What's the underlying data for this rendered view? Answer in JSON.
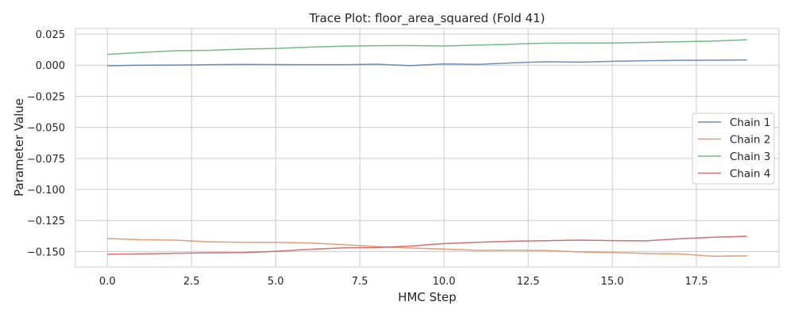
{
  "chart_data": {
    "type": "line",
    "title": "Trace Plot: floor_area_squared (Fold 41)",
    "xlabel": "HMC Step",
    "ylabel": "Parameter Value",
    "xlim": [
      -0.95,
      19.95
    ],
    "ylim": [
      -0.1625,
      0.0295
    ],
    "xticks": [
      0.0,
      2.5,
      5.0,
      7.5,
      10.0,
      12.5,
      15.0,
      17.5
    ],
    "xtick_labels": [
      "0.0",
      "2.5",
      "5.0",
      "7.5",
      "10.0",
      "12.5",
      "15.0",
      "17.5"
    ],
    "yticks": [
      0.025,
      0.0,
      -0.025,
      -0.05,
      -0.075,
      -0.1,
      -0.125,
      -0.15
    ],
    "ytick_labels": [
      "0.025",
      "0.000",
      "−0.025",
      "−0.050",
      "−0.075",
      "−0.100",
      "−0.125",
      "−0.150"
    ],
    "grid": true,
    "legend_position": "right",
    "x": [
      0,
      1,
      2,
      3,
      4,
      5,
      6,
      7,
      8,
      9,
      10,
      11,
      12,
      13,
      14,
      15,
      16,
      17,
      18,
      19
    ],
    "series": [
      {
        "name": "Chain 1",
        "color": "#4c72b0",
        "values": [
          -0.0005,
          0.0,
          0.0001,
          0.0004,
          0.0006,
          0.0005,
          0.0004,
          0.0004,
          0.0008,
          -0.0004,
          0.001,
          0.0006,
          0.0018,
          0.0028,
          0.0025,
          0.0031,
          0.0036,
          0.0039,
          0.004,
          0.0042
        ]
      },
      {
        "name": "Chain 2",
        "color": "#dd8452",
        "values": [
          -0.1395,
          -0.1405,
          -0.1408,
          -0.1422,
          -0.1426,
          -0.1426,
          -0.1431,
          -0.1444,
          -0.146,
          -0.1472,
          -0.148,
          -0.149,
          -0.1489,
          -0.1491,
          -0.1503,
          -0.1508,
          -0.1515,
          -0.1519,
          -0.1538,
          -0.1535
        ]
      },
      {
        "name": "Chain 3",
        "color": "#55a868",
        "values": [
          0.0087,
          0.0102,
          0.0116,
          0.0119,
          0.0129,
          0.0135,
          0.0145,
          0.0153,
          0.0157,
          0.0158,
          0.0155,
          0.0162,
          0.0169,
          0.0177,
          0.0178,
          0.0179,
          0.0183,
          0.0189,
          0.0194,
          0.0205
        ]
      },
      {
        "name": "Chain 4",
        "color": "#c44e52",
        "values": [
          -0.1521,
          -0.1519,
          -0.1514,
          -0.151,
          -0.1509,
          -0.1499,
          -0.1482,
          -0.147,
          -0.1468,
          -0.1456,
          -0.1436,
          -0.1426,
          -0.1417,
          -0.1413,
          -0.1408,
          -0.1412,
          -0.1414,
          -0.1397,
          -0.1385,
          -0.1377
        ]
      }
    ]
  }
}
